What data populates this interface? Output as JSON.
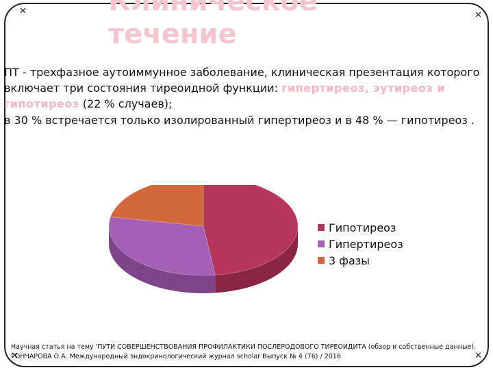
{
  "slide": {
    "title": "Клиническое\nтечение",
    "paragraph1": {
      "text_before": "ПТ  - трехфазное аутоиммунное заболевание, клиническая презентация которого включает три состояния тиреоидной функции: ",
      "highlight": "гипертиреоз, эутиреоз и гипотиреоз",
      "text_after": "  (22 % случаев);"
    },
    "paragraph2": "в 30 % встречается только изолированный гипертиреоз и в 48 % — гипотиреоз .",
    "footnote": "Научная статья на тему 'ПУТИ СОВЕРШЕНСТВОВАНИЯ ПРОФИЛАКТИКИ ПОСЛЕРОДОВОГО ТИРЕОИДИТА (обзор и собственные данные). ГОНЧАРОВА О.А. Международный эндокринологический журнал  scholar Выпуск № 4 (76) / 2016"
  },
  "colors": {
    "title": "#f6c6cf",
    "highlight": "#f4b6c2",
    "frame": "#222222"
  },
  "chart_data": {
    "type": "pie",
    "categories": [
      "Гипотиреоз",
      "Гипертиреоз",
      "3 фазы"
    ],
    "values": [
      48,
      30,
      22
    ],
    "colors": [
      "#b5365a",
      "#a55fb5",
      "#d3683a"
    ],
    "side_colors": [
      "#8a2544",
      "#7d4489",
      "#a24f2b"
    ],
    "legend_position": "right",
    "three_d": true
  }
}
